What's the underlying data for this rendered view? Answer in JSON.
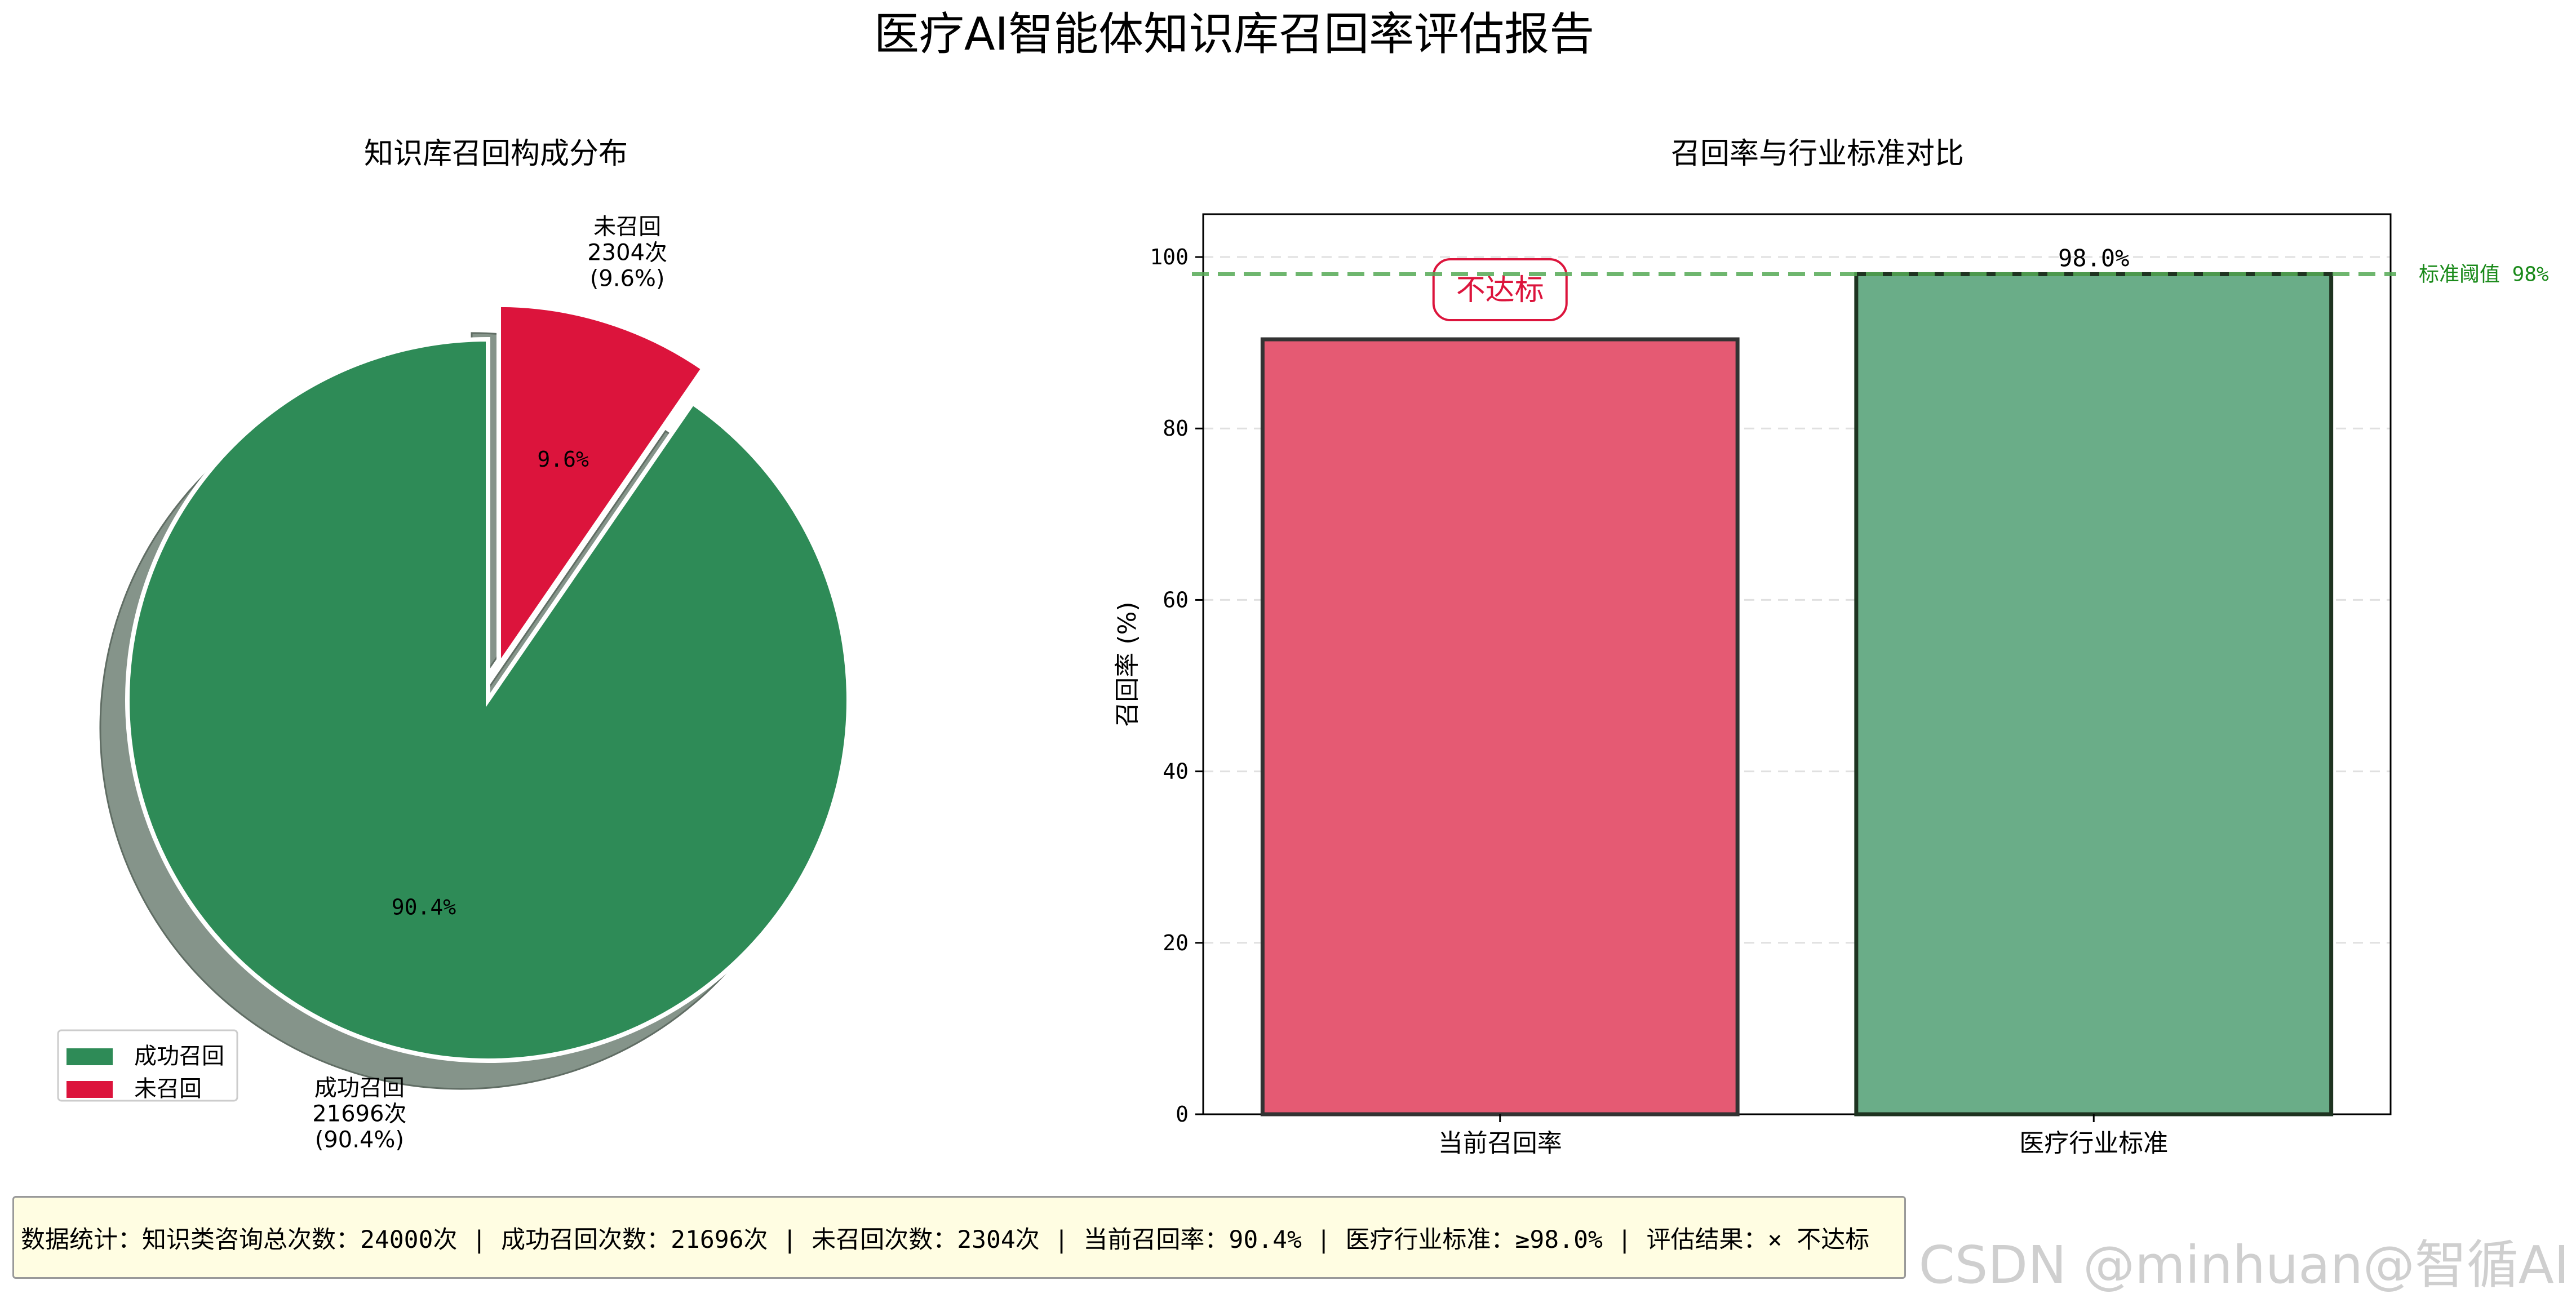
{
  "title": "医疗AI智能体知识库召回率评估报告",
  "colors": {
    "success": "#2e8b57",
    "fail": "#dc143c",
    "fail_bar": "#e55a73",
    "standard_bar": "#6aad88",
    "threshold": "#2e8b2e",
    "shadow": "#7f8f84"
  },
  "chart_data": [
    {
      "type": "pie",
      "title": "知识库召回构成分布",
      "slices": [
        {
          "name": "成功召回",
          "value": 21696,
          "pct_label": "90.4%",
          "outer_label": [
            "成功召回",
            "21696次",
            "(90.4%)"
          ],
          "color": "#2e8b57",
          "exploded": false
        },
        {
          "name": "未召回",
          "value": 2304,
          "pct_label": "9.6%",
          "outer_label": [
            "未召回",
            "2304次",
            "(9.6%)"
          ],
          "color": "#dc143c",
          "exploded": true
        }
      ],
      "shadow": true,
      "legend": {
        "placement": "lower-left",
        "entries": [
          "成功召回",
          "未召回"
        ]
      }
    },
    {
      "type": "bar",
      "title": "召回率与行业标准对比",
      "categories": [
        "当前召回率",
        "医疗行业标准"
      ],
      "values": [
        90.4,
        98.0
      ],
      "colors": [
        "#e55a73",
        "#6aad88"
      ],
      "ylabel": "召回率 (%)",
      "ylim": [
        0,
        105
      ],
      "yticks": [
        0,
        20,
        40,
        60,
        80,
        100
      ],
      "grid": "y-dashed",
      "value_labels": [
        null,
        "98.0%"
      ],
      "badge": {
        "text": "不达标",
        "category": "当前召回率"
      },
      "threshold": {
        "value": 98,
        "label": "标准阈值 98%"
      }
    }
  ],
  "summary": "数据统计：知识类咨询总次数：24000次 | 成功召回次数：21696次 | 未召回次数：2304次 | 当前召回率：90.4% | 医疗行业标准：≥98.0% | 评估结果：× 不达标",
  "watermark": "CSDN @minhuan@智循AI"
}
